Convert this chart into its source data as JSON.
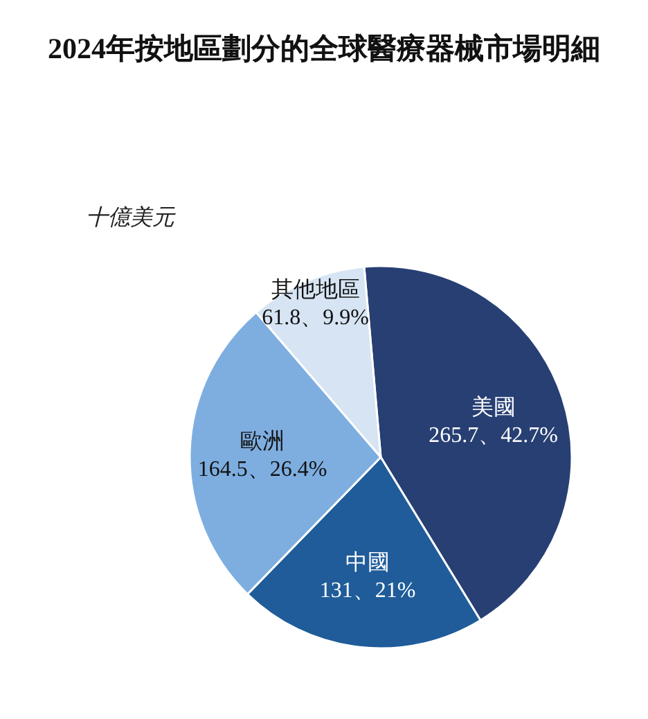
{
  "chart_data": {
    "type": "pie",
    "title": "2024年按地區劃分的全球醫療器械市場明細",
    "subtitle": "十億美元",
    "categories": [
      "美國",
      "中國",
      "歐洲",
      "其他地區"
    ],
    "values": [
      265.7,
      131,
      164.5,
      61.8
    ],
    "value_labels": [
      "265.7、42.7%",
      "131、21%",
      "164.5、26.4%",
      "61.8、9.9%"
    ],
    "colors": [
      "#273f73",
      "#1f5c99",
      "#7eaee0",
      "#d6e4f3"
    ]
  }
}
